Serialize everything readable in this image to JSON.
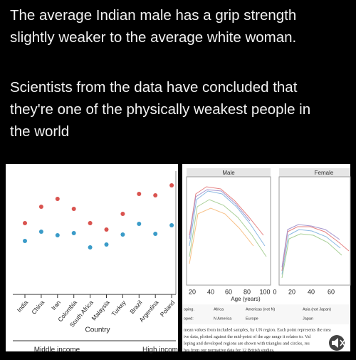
{
  "post": {
    "paragraphs": [
      [
        "The average Indian male has a grip strength",
        "slightly weaker to the average white woman."
      ],
      [
        "Scientists from the data have concluded that",
        "they're one of the physically weakest people in",
        "the world"
      ]
    ]
  },
  "left_chart": {
    "type": "scatter",
    "categories": [
      "India",
      "China",
      "Iran",
      "Colombia",
      "South Africa",
      "Malaysia",
      "Turkey",
      "Brazil",
      "Argentina",
      "Poland"
    ],
    "series": [
      {
        "color": "#d9534f",
        "values": [
          47,
          70,
          81,
          67,
          47,
          38,
          60,
          88,
          86,
          100
        ]
      },
      {
        "color": "#3a9bc8",
        "values": [
          22,
          35,
          30,
          33,
          13,
          17,
          31,
          46,
          32,
          44
        ]
      }
    ],
    "xlabel": "Country",
    "groups": [
      "Middle income",
      "High incom"
    ]
  },
  "right_chart": {
    "panels": [
      "Male",
      "Female"
    ],
    "xticks_male": [
      "20",
      "40",
      "60",
      "80",
      "100"
    ],
    "xticks_female": [
      "0",
      "20",
      "40",
      "60"
    ],
    "xlabel": "Age (years)",
    "legend_rows": [
      [
        "oping.",
        "Africa",
        "Americas (not N)",
        "Asia (not Japan)"
      ],
      [
        "oped:",
        "N America",
        "Europe",
        "Japan"
      ]
    ],
    "caption": [
      "mean values from included samples, by UN region. Each point represents the mea",
      "ive data, plotted against the mid-point of the age range it relates to. Val",
      "loping and developed regions are shown with triangles and circles, res",
      "hes from our normative data for 12 British studies."
    ]
  }
}
